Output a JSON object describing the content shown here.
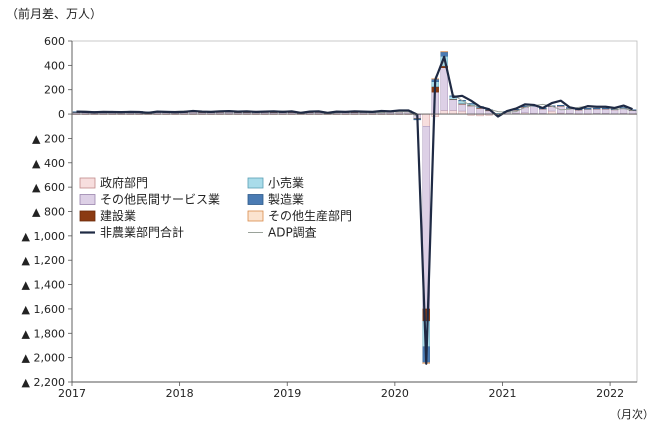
{
  "chart_data": {
    "type": "bar",
    "unit_label": "（前月差、万人）",
    "x_unit_label": "（月次）",
    "ylim": [
      -2200,
      600
    ],
    "y_ticks": [
      {
        "value": 600,
        "label": "600"
      },
      {
        "value": 400,
        "label": "400"
      },
      {
        "value": 200,
        "label": "200"
      },
      {
        "value": 0,
        "label": "0"
      },
      {
        "value": -200,
        "label": "▲ 200"
      },
      {
        "value": -400,
        "label": "▲ 400"
      },
      {
        "value": -600,
        "label": "▲ 600"
      },
      {
        "value": -800,
        "label": "▲ 800"
      },
      {
        "value": -1000,
        "label": "▲ 1,000"
      },
      {
        "value": -1200,
        "label": "▲ 1,200"
      },
      {
        "value": -1400,
        "label": "▲ 1,400"
      },
      {
        "value": -1600,
        "label": "▲ 1,600"
      },
      {
        "value": -1800,
        "label": "▲ 1,800"
      },
      {
        "value": -2000,
        "label": "▲ 2,000"
      },
      {
        "value": -2200,
        "label": "▲ 2,200"
      }
    ],
    "x_ticks": [
      {
        "month_index": 0,
        "label": "2017"
      },
      {
        "month_index": 12,
        "label": "2018"
      },
      {
        "month_index": 24,
        "label": "2019"
      },
      {
        "month_index": 36,
        "label": "2020"
      },
      {
        "month_index": 48,
        "label": "2021"
      },
      {
        "month_index": 60,
        "label": "2022"
      }
    ],
    "x_range": [
      0,
      63
    ],
    "months": [
      "2017-01",
      "2017-02",
      "2017-03",
      "2017-04",
      "2017-05",
      "2017-06",
      "2017-07",
      "2017-08",
      "2017-09",
      "2017-10",
      "2017-11",
      "2017-12",
      "2018-01",
      "2018-02",
      "2018-03",
      "2018-04",
      "2018-05",
      "2018-06",
      "2018-07",
      "2018-08",
      "2018-09",
      "2018-10",
      "2018-11",
      "2018-12",
      "2019-01",
      "2019-02",
      "2019-03",
      "2019-04",
      "2019-05",
      "2019-06",
      "2019-07",
      "2019-08",
      "2019-09",
      "2019-10",
      "2019-11",
      "2019-12",
      "2020-01",
      "2020-02",
      "2020-03",
      "2020-04",
      "2020-05",
      "2020-06",
      "2020-07",
      "2020-08",
      "2020-09",
      "2020-10",
      "2020-11",
      "2020-12",
      "2021-01",
      "2021-02",
      "2021-03",
      "2021-04",
      "2021-05",
      "2021-06",
      "2021-07",
      "2021-08",
      "2021-09",
      "2021-10",
      "2021-11",
      "2021-12",
      "2022-01",
      "2022-02",
      "2022-03"
    ],
    "legend": {
      "columns": [
        [
          "政府部門",
          "その他民間サービス業",
          "建設業",
          "非農業部門合計"
        ],
        [
          "小売業",
          "製造業",
          "その他生産部門",
          "ADP調査"
        ]
      ]
    },
    "bar_series": [
      {
        "name": "政府部門",
        "color": "#f7dede",
        "border": "#c08a8a",
        "values": [
          1,
          1,
          1,
          1,
          1,
          1,
          1,
          1,
          1,
          1,
          1,
          1,
          1,
          1,
          1,
          1,
          1,
          1,
          1,
          1,
          1,
          1,
          1,
          1,
          1,
          1,
          1,
          1,
          1,
          1,
          1,
          1,
          1,
          1,
          1,
          1,
          1,
          1,
          -5,
          -100,
          -20,
          30,
          30,
          25,
          -10,
          -15,
          -10,
          -5,
          3,
          5,
          10,
          5,
          5,
          25,
          8,
          5,
          2,
          2,
          5,
          5,
          3,
          5,
          2
        ]
      },
      {
        "name": "その他民間サービス業",
        "color": "#ddd0e6",
        "border": "#9a84ad",
        "values": [
          13,
          14,
          15,
          14,
          13,
          12,
          14,
          15,
          12,
          16,
          13,
          12,
          14,
          18,
          14,
          13,
          15,
          16,
          13,
          14,
          12,
          15,
          14,
          13,
          14,
          8,
          14,
          15,
          8,
          14,
          13,
          14,
          13,
          12,
          15,
          16,
          18,
          20,
          -30,
          -1500,
          180,
          350,
          90,
          60,
          70,
          50,
          30,
          5,
          15,
          30,
          50,
          60,
          40,
          40,
          60,
          45,
          35,
          40,
          40,
          40,
          35,
          45,
          30
        ]
      },
      {
        "name": "建設業",
        "color": "#8b3a12",
        "border": "#6b2a0a",
        "values": [
          2,
          2,
          2,
          2,
          2,
          2,
          2,
          2,
          2,
          2,
          2,
          2,
          2,
          2,
          2,
          2,
          2,
          2,
          2,
          2,
          2,
          2,
          2,
          2,
          2,
          2,
          2,
          2,
          2,
          2,
          2,
          2,
          2,
          2,
          2,
          2,
          2,
          2,
          -3,
          -100,
          45,
          15,
          2,
          1,
          1,
          1,
          1,
          0,
          1,
          1,
          1,
          0,
          1,
          1,
          1,
          1,
          1,
          1,
          1,
          1,
          1,
          1,
          1
        ]
      },
      {
        "name": "小売業",
        "color": "#a9dcea",
        "border": "#5a9fb5",
        "values": [
          2,
          2,
          2,
          2,
          2,
          2,
          2,
          2,
          2,
          2,
          2,
          2,
          2,
          2,
          2,
          2,
          2,
          2,
          2,
          2,
          2,
          2,
          2,
          2,
          2,
          2,
          2,
          2,
          2,
          2,
          2,
          2,
          2,
          2,
          2,
          2,
          2,
          2,
          -5,
          -210,
          40,
          80,
          25,
          25,
          15,
          10,
          5,
          2,
          2,
          3,
          4,
          3,
          2,
          2,
          3,
          2,
          2,
          3,
          2,
          2,
          3,
          2,
          2
        ]
      },
      {
        "name": "製造業",
        "color": "#4a7bb3",
        "border": "#2e5a8a",
        "values": [
          2,
          2,
          2,
          2,
          2,
          2,
          2,
          2,
          2,
          2,
          2,
          2,
          2,
          2,
          2,
          2,
          2,
          2,
          2,
          2,
          2,
          2,
          2,
          2,
          2,
          2,
          2,
          2,
          2,
          2,
          2,
          2,
          2,
          2,
          2,
          2,
          2,
          2,
          -2,
          -130,
          22,
          35,
          3,
          2,
          1,
          1,
          1,
          0,
          1,
          1,
          1,
          1,
          1,
          1,
          1,
          1,
          1,
          1,
          1,
          1,
          1,
          1,
          1
        ]
      },
      {
        "name": "その他生産部門",
        "color": "#fbe3cf",
        "border": "#d98a4a",
        "values": [
          0,
          0,
          0,
          0,
          0,
          0,
          0,
          0,
          0,
          0,
          0,
          0,
          0,
          0,
          0,
          0,
          0,
          0,
          0,
          0,
          0,
          0,
          0,
          0,
          0,
          0,
          0,
          0,
          0,
          0,
          0,
          0,
          0,
          0,
          0,
          0,
          0,
          0,
          0,
          -10,
          5,
          5,
          0,
          0,
          0,
          0,
          0,
          0,
          0,
          0,
          0,
          0,
          0,
          0,
          0,
          0,
          0,
          0,
          0,
          0,
          0,
          0,
          0
        ]
      }
    ],
    "line_series": [
      {
        "name": "非農業部門合計",
        "color": "#1f2a44",
        "width": 2.2,
        "values": [
          20,
          18,
          15,
          18,
          17,
          16,
          18,
          17,
          10,
          20,
          18,
          16,
          18,
          25,
          20,
          18,
          22,
          24,
          20,
          22,
          18,
          20,
          22,
          18,
          22,
          10,
          20,
          22,
          10,
          20,
          18,
          22,
          20,
          18,
          25,
          22,
          30,
          30,
          -5,
          -2050,
          280,
          470,
          140,
          150,
          110,
          60,
          40,
          -20,
          25,
          45,
          80,
          75,
          50,
          90,
          110,
          55,
          40,
          65,
          60,
          60,
          50,
          70,
          40
        ]
      },
      {
        "name": "ADP調査",
        "color": "#9aa29a",
        "width": 1.0,
        "values": [
          25,
          24,
          20,
          18,
          22,
          16,
          18,
          20,
          12,
          22,
          20,
          22,
          25,
          20,
          22,
          18,
          20,
          18,
          20,
          18,
          16,
          22,
          20,
          25,
          18,
          14,
          18,
          20,
          8,
          12,
          15,
          18,
          14,
          16,
          12,
          20,
          18,
          20,
          -20,
          -1950,
          300,
          440,
          160,
          110,
          70,
          60,
          40,
          20,
          15,
          20,
          55,
          70,
          80,
          65,
          35,
          40,
          55,
          65,
          60,
          60,
          40,
          45,
          30
        ]
      }
    ]
  }
}
